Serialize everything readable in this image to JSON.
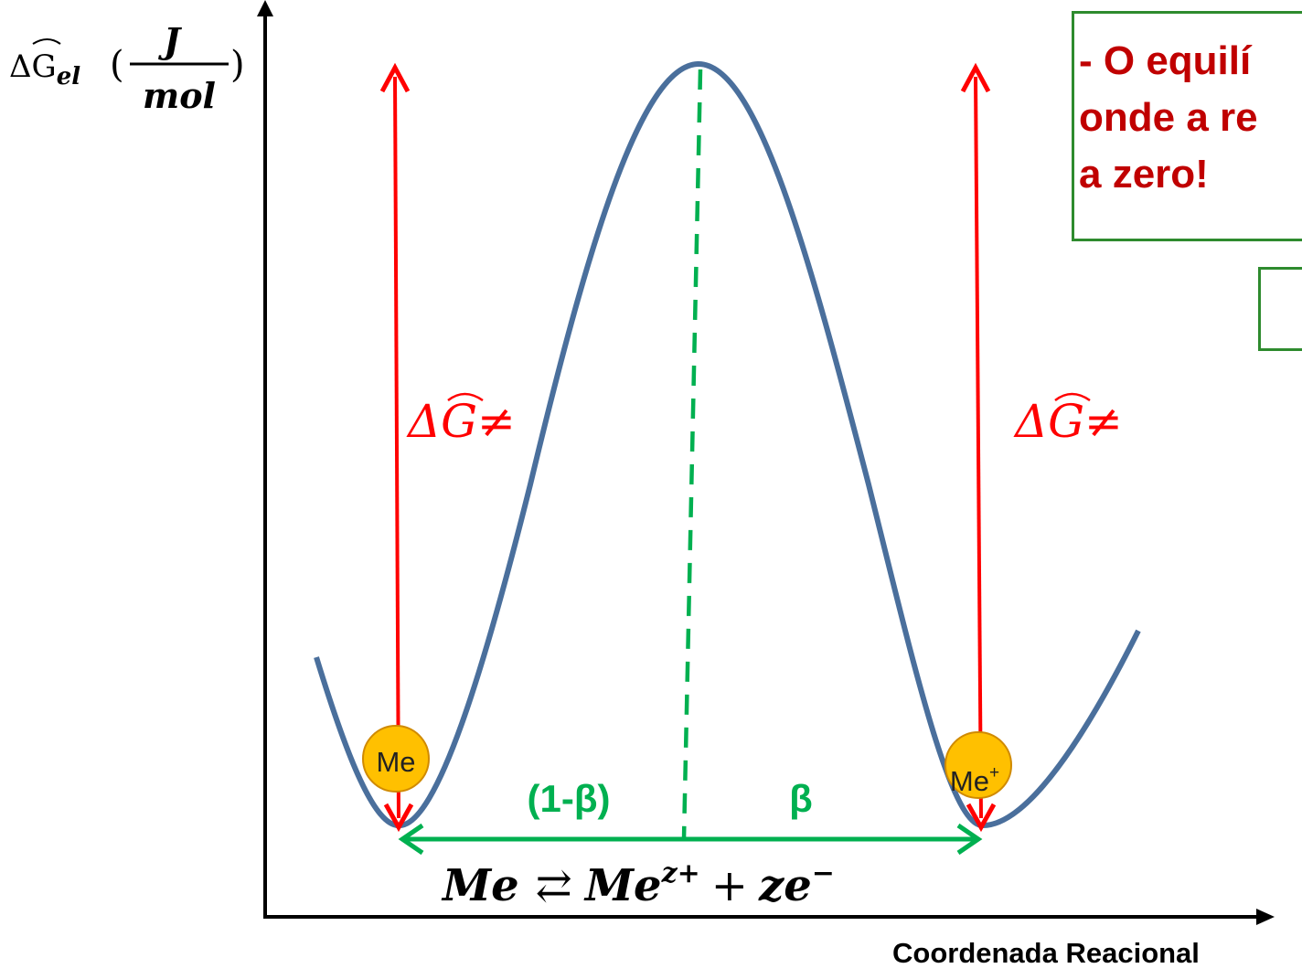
{
  "diagram": {
    "y_axis_label": {
      "prefix": "ΔG",
      "subscript": "el",
      "unit_numerator": "J",
      "unit_denominator": "mol"
    },
    "x_axis_label": "Coordenada Reacional",
    "barrier_label_left": "ΔG≠",
    "barrier_label_right": "ΔG≠",
    "fraction_left": "(1-β)",
    "fraction_right": "β",
    "species_left": "Me",
    "species_right_base": "Me",
    "species_right_sup": "+",
    "reaction": {
      "reactant": "Me",
      "arrow": "⇄",
      "product_base": "Me",
      "product_sup": "z+",
      "plus": "+",
      "electron_base": "ze",
      "electron_sup": "−"
    },
    "callout_lines": [
      "- O equilí",
      "onde a re",
      "a zero!"
    ]
  },
  "colors": {
    "curve": "#4a6f9c",
    "arrow_red": "#ff0000",
    "label_red": "#ff0000",
    "green": "#00b050",
    "ball": "#ffc000",
    "ball_outline": "#d08a00",
    "callout_text": "#c00000",
    "callout_border": "#2e8b2e"
  }
}
